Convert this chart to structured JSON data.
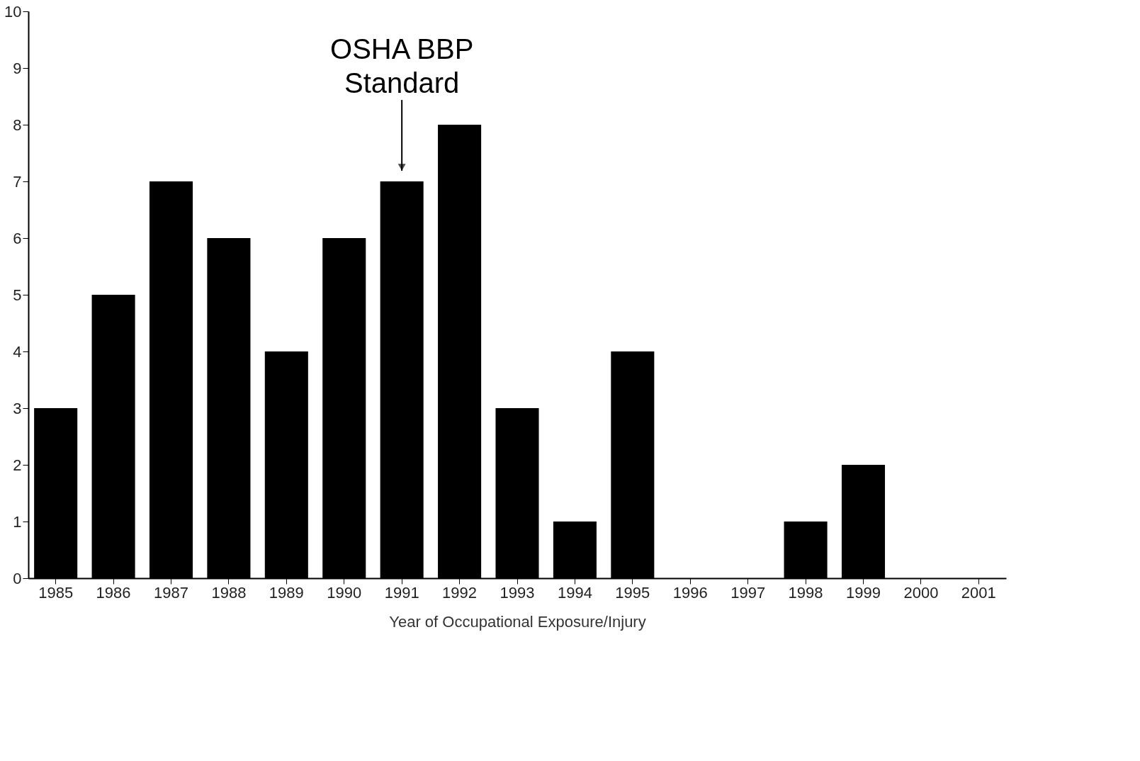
{
  "chart_data": {
    "type": "bar",
    "xlabel": "Year of Occupational Exposure/Injury",
    "categories": [
      "1985",
      "1986",
      "1987",
      "1988",
      "1989",
      "1990",
      "1991",
      "1992",
      "1993",
      "1994",
      "1995",
      "1996",
      "1997",
      "1998",
      "1999",
      "2000",
      "2001"
    ],
    "values": [
      3,
      5,
      7,
      6,
      4,
      6,
      7,
      8,
      3,
      1,
      4,
      0,
      0,
      1,
      2,
      0,
      0
    ],
    "color": "#000000",
    "ylim": [
      0,
      10
    ],
    "yticks": [
      0,
      1,
      2,
      3,
      4,
      5,
      6,
      7,
      8,
      9,
      10
    ],
    "grid": false,
    "annotations": [
      {
        "text": "OSHA BBP\nStandard",
        "x": "1991",
        "y": 7
      }
    ]
  }
}
